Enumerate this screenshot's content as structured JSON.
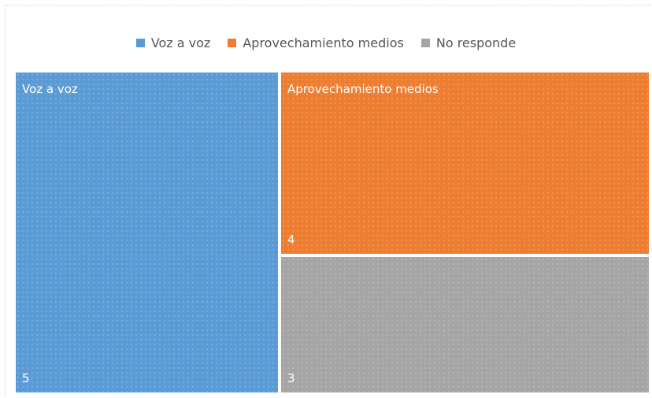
{
  "chart_data": {
    "type": "treemap",
    "title": "",
    "legend": {
      "position": "top",
      "entries": [
        {
          "label": "Voz a voz",
          "color": "#5b9bd5"
        },
        {
          "label": "Aprovechamiento medios",
          "color": "#ed7d31"
        },
        {
          "label": "No responde",
          "color": "#a5a5a5"
        }
      ]
    },
    "categories": [
      "Voz a voz",
      "Aprovechamiento medios",
      "No responde"
    ],
    "values": [
      5,
      4,
      3
    ],
    "colors": [
      "#5b9bd5",
      "#ed7d31",
      "#a5a5a5"
    ],
    "show_category_labels": [
      true,
      true,
      false
    ],
    "show_value_labels": [
      true,
      true,
      true
    ]
  }
}
